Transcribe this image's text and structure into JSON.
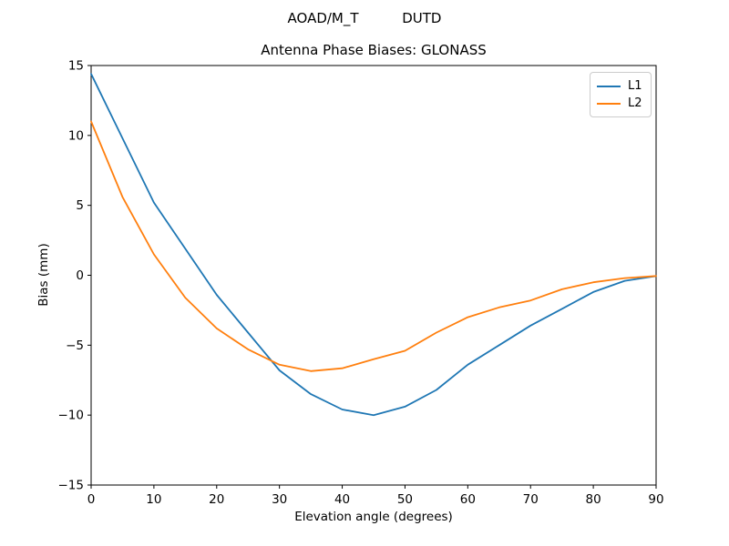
{
  "figure": {
    "suptitle": "AOAD/M_T          DUTD",
    "title": "Antenna Phase Biases: GLONASS"
  },
  "chart_data": {
    "type": "line",
    "suptitle": "AOAD/M_T          DUTD",
    "title": "Antenna Phase Biases: GLONASS",
    "xlabel": "Elevation angle (degrees)",
    "ylabel": "Bias (mm)",
    "xlim": [
      0,
      90
    ],
    "ylim": [
      -15,
      15
    ],
    "xticks": [
      0,
      10,
      20,
      30,
      40,
      50,
      60,
      70,
      80,
      90
    ],
    "yticks": [
      -15,
      -10,
      -5,
      0,
      5,
      10,
      15
    ],
    "grid": false,
    "legend_position": "upper right",
    "x": [
      0,
      5,
      10,
      15,
      20,
      25,
      30,
      35,
      40,
      45,
      50,
      55,
      60,
      65,
      70,
      75,
      80,
      85,
      90
    ],
    "series": [
      {
        "name": "L1",
        "color": "#1f77b4",
        "values": [
          14.4,
          9.8,
          5.2,
          1.9,
          -1.4,
          -4.1,
          -6.8,
          -8.5,
          -9.6,
          -10.0,
          -9.4,
          -8.2,
          -6.4,
          -5.0,
          -3.6,
          -2.4,
          -1.2,
          -0.4,
          -0.05
        ]
      },
      {
        "name": "L2",
        "color": "#ff7f0e",
        "values": [
          11.0,
          5.6,
          1.5,
          -1.6,
          -3.8,
          -5.3,
          -6.4,
          -6.85,
          -6.65,
          -6.0,
          -5.4,
          -4.1,
          -3.0,
          -2.3,
          -1.8,
          -1.0,
          -0.5,
          -0.2,
          -0.05
        ]
      }
    ]
  }
}
